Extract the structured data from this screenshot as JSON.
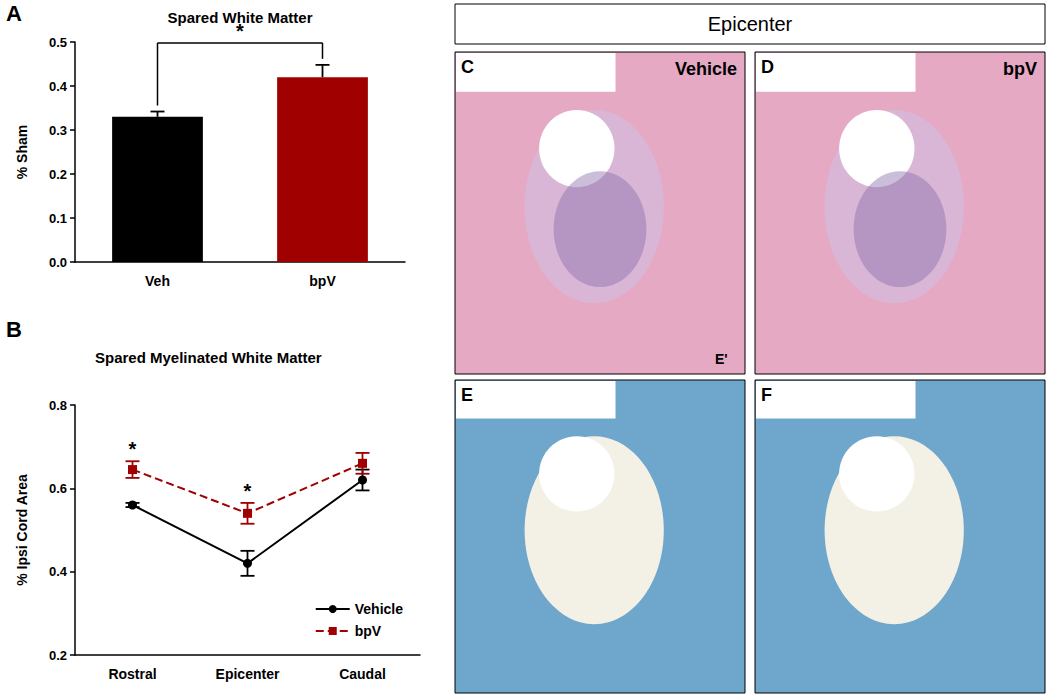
{
  "chart_data": [
    {
      "type": "bar",
      "panel_label": "A",
      "title": "Spared White Matter",
      "y_label": "% Sham",
      "categories": [
        "Veh",
        "bpV"
      ],
      "values": [
        0.33,
        0.42
      ],
      "errors": [
        0.012,
        0.028
      ],
      "colors": [
        "#000000",
        "#a00000"
      ],
      "ylim": [
        0,
        0.5
      ],
      "yticks": [
        {
          "value": 0,
          "label": "0.0"
        },
        0.1,
        0.2,
        0.3,
        0.4,
        0.5
      ],
      "grid": false,
      "annotations": [
        {
          "text": "*",
          "between": [
            "Veh",
            "bpV"
          ]
        }
      ]
    },
    {
      "type": "line",
      "panel_label": "B",
      "title": "Spared Myelinated White Matter",
      "y_label": "% Ipsi Cord Area",
      "categories": [
        "Rostral",
        "Epicenter",
        "Caudal"
      ],
      "series": [
        {
          "name": "Vehicle",
          "color": "#000000",
          "marker": "circle",
          "line_style": "solid",
          "values": [
            0.56,
            0.42,
            0.62
          ],
          "errors": [
            0.005,
            0.03,
            0.025
          ]
        },
        {
          "name": "bpV",
          "color": "#a00000",
          "marker": "square",
          "line_style": "dashed",
          "values": [
            0.645,
            0.54,
            0.66
          ],
          "errors": [
            0.02,
            0.025,
            0.025
          ]
        }
      ],
      "ylim": [
        0.2,
        0.8
      ],
      "yticks": [
        0.2,
        0.4,
        0.6,
        0.8
      ],
      "grid": false,
      "legend": "lower right",
      "annotations": [
        {
          "text": "*",
          "category": "Rostral"
        },
        {
          "text": "*",
          "category": "Epicenter"
        }
      ]
    }
  ],
  "panels": {
    "header": "Epicenter",
    "images": [
      {
        "letter": "C",
        "label": "Vehicle",
        "annotation": "E'"
      },
      {
        "letter": "D",
        "label": "bpV"
      },
      {
        "letter": "E"
      },
      {
        "letter": "F"
      }
    ]
  }
}
